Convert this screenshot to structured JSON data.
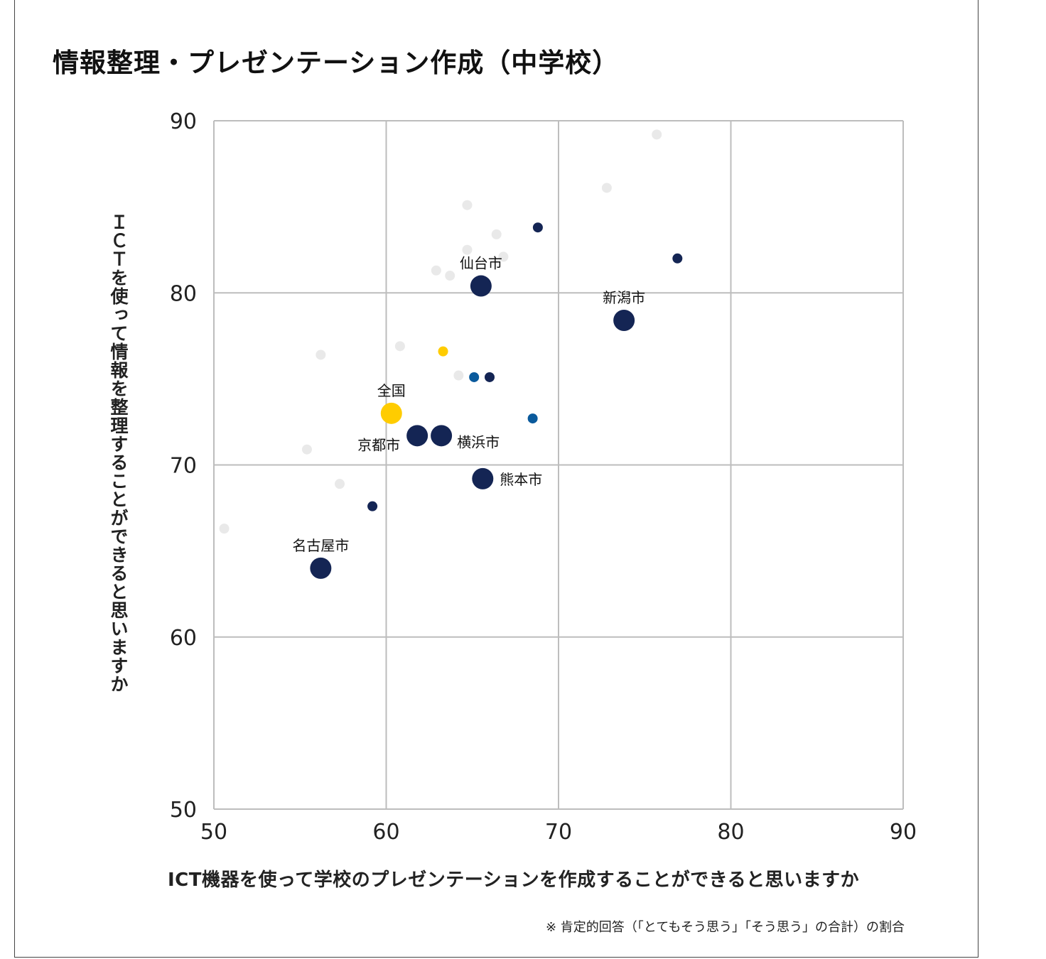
{
  "chart_data": {
    "type": "scatter",
    "title": "情報整理・プレゼンテーション作成（中学校）",
    "xlabel": "ICT機器を使って学校のプレゼンテーションを作成することができると思いますか",
    "ylabel": "ＩＣＴを使って情報を整理することができると思いますか",
    "note": "※ 肯定的回答（「とてもそう思う」「そう思う」の合計）の割合",
    "xlim": [
      50,
      90
    ],
    "ylim": [
      50,
      90
    ],
    "xticks": [
      "50",
      "60",
      "70",
      "80",
      "90"
    ],
    "yticks": [
      "50",
      "60",
      "70",
      "80",
      "90"
    ],
    "grid": true,
    "colors": {
      "gray": "#e9e9e9",
      "navy": "#142554",
      "blue": "#0a5a9c",
      "yellow": "#ffcc00",
      "grid": "#bdbdbd"
    },
    "points": [
      {
        "x": 75.7,
        "y": 89.2,
        "color": "gray",
        "size": "small"
      },
      {
        "x": 72.8,
        "y": 86.1,
        "color": "gray",
        "size": "small"
      },
      {
        "x": 64.7,
        "y": 85.1,
        "color": "gray",
        "size": "small"
      },
      {
        "x": 66.4,
        "y": 83.4,
        "color": "gray",
        "size": "small"
      },
      {
        "x": 64.7,
        "y": 82.5,
        "color": "gray",
        "size": "small"
      },
      {
        "x": 66.8,
        "y": 82.1,
        "color": "gray",
        "size": "small"
      },
      {
        "x": 62.9,
        "y": 81.3,
        "color": "gray",
        "size": "small"
      },
      {
        "x": 63.7,
        "y": 81.0,
        "color": "gray",
        "size": "small"
      },
      {
        "x": 60.8,
        "y": 76.9,
        "color": "gray",
        "size": "small"
      },
      {
        "x": 56.2,
        "y": 76.4,
        "color": "gray",
        "size": "small"
      },
      {
        "x": 64.2,
        "y": 75.2,
        "color": "gray",
        "size": "small"
      },
      {
        "x": 55.4,
        "y": 70.9,
        "color": "gray",
        "size": "small"
      },
      {
        "x": 57.3,
        "y": 68.9,
        "color": "gray",
        "size": "small"
      },
      {
        "x": 50.6,
        "y": 66.3,
        "color": "gray",
        "size": "small"
      },
      {
        "x": 68.8,
        "y": 83.8,
        "color": "navy",
        "size": "small"
      },
      {
        "x": 76.9,
        "y": 82.0,
        "color": "navy",
        "size": "small"
      },
      {
        "x": 66.0,
        "y": 75.1,
        "color": "navy",
        "size": "small"
      },
      {
        "x": 59.2,
        "y": 67.6,
        "color": "navy",
        "size": "small"
      },
      {
        "x": 65.1,
        "y": 75.1,
        "color": "blue",
        "size": "small"
      },
      {
        "x": 68.5,
        "y": 72.7,
        "color": "blue",
        "size": "small"
      },
      {
        "x": 63.3,
        "y": 76.6,
        "color": "yellow",
        "size": "small"
      },
      {
        "x": 60.3,
        "y": 73.0,
        "color": "yellow",
        "size": "large",
        "label": "全国",
        "label_pos": "top"
      },
      {
        "x": 65.5,
        "y": 80.4,
        "color": "navy",
        "size": "large",
        "label": "仙台市",
        "label_pos": "top"
      },
      {
        "x": 73.8,
        "y": 78.4,
        "color": "navy",
        "size": "large",
        "label": "新潟市",
        "label_pos": "top"
      },
      {
        "x": 61.8,
        "y": 71.7,
        "color": "navy",
        "size": "large",
        "label": "京都市",
        "label_pos": "left-below"
      },
      {
        "x": 63.2,
        "y": 71.7,
        "color": "navy",
        "size": "large",
        "label": "横浜市",
        "label_pos": "right-below"
      },
      {
        "x": 65.6,
        "y": 69.2,
        "color": "navy",
        "size": "large",
        "label": "熊本市",
        "label_pos": "right"
      },
      {
        "x": 56.2,
        "y": 64.0,
        "color": "navy",
        "size": "large",
        "label": "名古屋市",
        "label_pos": "top"
      }
    ]
  }
}
